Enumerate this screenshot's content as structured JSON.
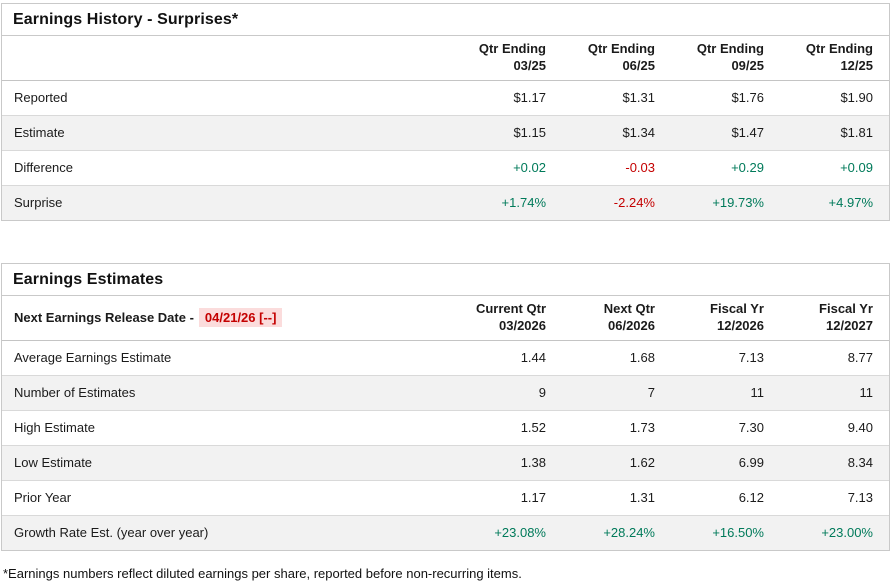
{
  "theme": {
    "positive": "#007a5a",
    "negative": "#c40000",
    "highlight_bg": "#fbdcdc",
    "row_alt_bg": "#f2f2f2",
    "border": "#c9c9c9"
  },
  "earnings_history": {
    "title": "Earnings History - Surprises*",
    "columns": [
      {
        "top": "Qtr Ending",
        "bottom": "03/25"
      },
      {
        "top": "Qtr Ending",
        "bottom": "06/25"
      },
      {
        "top": "Qtr Ending",
        "bottom": "09/25"
      },
      {
        "top": "Qtr Ending",
        "bottom": "12/25"
      }
    ],
    "rows": [
      {
        "label": "Reported",
        "values": [
          "$1.17",
          "$1.31",
          "$1.76",
          "$1.90"
        ]
      },
      {
        "label": "Estimate",
        "values": [
          "$1.15",
          "$1.34",
          "$1.47",
          "$1.81"
        ]
      },
      {
        "label": "Difference",
        "values": [
          "+0.02",
          "-0.03",
          "+0.29",
          "+0.09"
        ]
      },
      {
        "label": "Surprise",
        "values": [
          "+1.74%",
          "-2.24%",
          "+19.73%",
          "+4.97%"
        ]
      }
    ]
  },
  "earnings_estimates": {
    "title": "Earnings Estimates",
    "release_date_label": "Next Earnings Release Date -",
    "release_date": "04/21/26 [--]",
    "columns": [
      {
        "top": "Current Qtr",
        "bottom": "03/2026"
      },
      {
        "top": "Next Qtr",
        "bottom": "06/2026"
      },
      {
        "top": "Fiscal Yr",
        "bottom": "12/2026"
      },
      {
        "top": "Fiscal Yr",
        "bottom": "12/2027"
      }
    ],
    "rows": [
      {
        "label": "Average Earnings Estimate",
        "values": [
          "1.44",
          "1.68",
          "7.13",
          "8.77"
        ]
      },
      {
        "label": "Number of Estimates",
        "values": [
          "9",
          "7",
          "11",
          "11"
        ]
      },
      {
        "label": "High Estimate",
        "values": [
          "1.52",
          "1.73",
          "7.30",
          "9.40"
        ]
      },
      {
        "label": "Low Estimate",
        "values": [
          "1.38",
          "1.62",
          "6.99",
          "8.34"
        ]
      },
      {
        "label": "Prior Year",
        "values": [
          "1.17",
          "1.31",
          "6.12",
          "7.13"
        ]
      },
      {
        "label": "Growth Rate Est. (year over year)",
        "values": [
          "+23.08%",
          "+28.24%",
          "+16.50%",
          "+23.00%"
        ]
      }
    ]
  },
  "footnote": "*Earnings numbers reflect diluted earnings per share, reported before non-recurring items."
}
